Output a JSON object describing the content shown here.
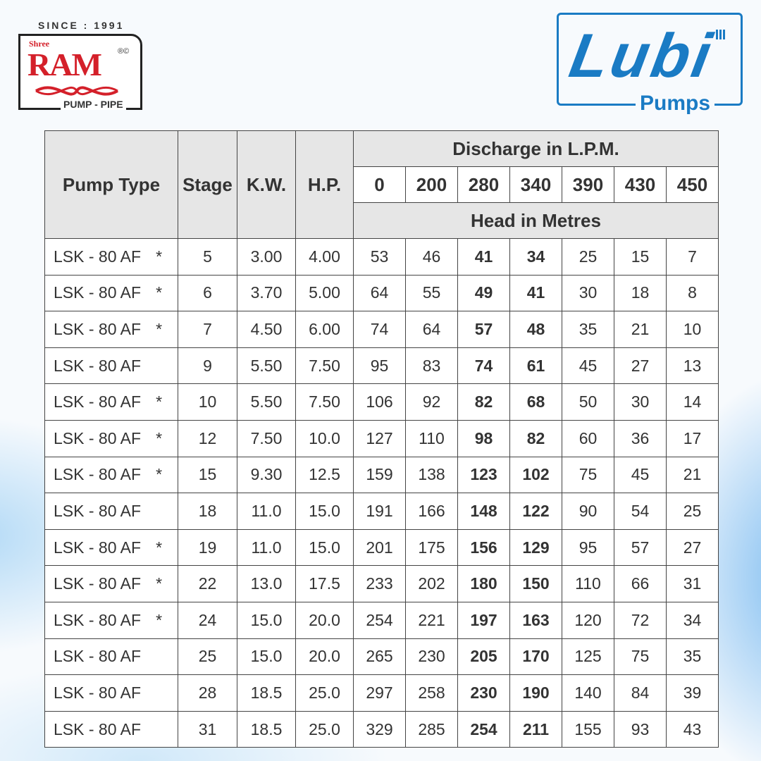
{
  "logos": {
    "ram": {
      "since": "SINCE : 1991",
      "shree": "Shree",
      "name": "RAM",
      "marks": "®©",
      "tagline": "PUMP - PIPE",
      "color": "#d4202a"
    },
    "lubi": {
      "name": "Lubi",
      "tagline": "Pumps",
      "color": "#1a7bc4"
    }
  },
  "table": {
    "headers": {
      "pump_type": "Pump Type",
      "stage": "Stage",
      "kw": "K.W.",
      "hp": "H.P.",
      "discharge": "Discharge in L.P.M.",
      "head": "Head in Metres"
    },
    "discharge_values": [
      "0",
      "200",
      "280",
      "340",
      "390",
      "430",
      "450"
    ],
    "rows": [
      {
        "type": "LSK - 80 AF",
        "mark": "*",
        "stage": "5",
        "kw": "3.00",
        "hp": "4.00",
        "heads": [
          "53",
          "46",
          "41",
          "34",
          "25",
          "15",
          "7"
        ]
      },
      {
        "type": "LSK - 80 AF",
        "mark": "*",
        "stage": "6",
        "kw": "3.70",
        "hp": "5.00",
        "heads": [
          "64",
          "55",
          "49",
          "41",
          "30",
          "18",
          "8"
        ]
      },
      {
        "type": "LSK - 80 AF",
        "mark": "*",
        "stage": "7",
        "kw": "4.50",
        "hp": "6.00",
        "heads": [
          "74",
          "64",
          "57",
          "48",
          "35",
          "21",
          "10"
        ]
      },
      {
        "type": "LSK - 80 AF",
        "mark": "",
        "stage": "9",
        "kw": "5.50",
        "hp": "7.50",
        "heads": [
          "95",
          "83",
          "74",
          "61",
          "45",
          "27",
          "13"
        ]
      },
      {
        "type": "LSK - 80 AF",
        "mark": "*",
        "stage": "10",
        "kw": "5.50",
        "hp": "7.50",
        "heads": [
          "106",
          "92",
          "82",
          "68",
          "50",
          "30",
          "14"
        ]
      },
      {
        "type": "LSK - 80 AF",
        "mark": "*",
        "stage": "12",
        "kw": "7.50",
        "hp": "10.0",
        "heads": [
          "127",
          "110",
          "98",
          "82",
          "60",
          "36",
          "17"
        ]
      },
      {
        "type": "LSK - 80 AF",
        "mark": "*",
        "stage": "15",
        "kw": "9.30",
        "hp": "12.5",
        "heads": [
          "159",
          "138",
          "123",
          "102",
          "75",
          "45",
          "21"
        ]
      },
      {
        "type": "LSK - 80 AF",
        "mark": "",
        "stage": "18",
        "kw": "11.0",
        "hp": "15.0",
        "heads": [
          "191",
          "166",
          "148",
          "122",
          "90",
          "54",
          "25"
        ]
      },
      {
        "type": "LSK - 80 AF",
        "mark": "*",
        "stage": "19",
        "kw": "11.0",
        "hp": "15.0",
        "heads": [
          "201",
          "175",
          "156",
          "129",
          "95",
          "57",
          "27"
        ]
      },
      {
        "type": "LSK - 80 AF",
        "mark": "*",
        "stage": "22",
        "kw": "13.0",
        "hp": "17.5",
        "heads": [
          "233",
          "202",
          "180",
          "150",
          "110",
          "66",
          "31"
        ]
      },
      {
        "type": "LSK - 80 AF",
        "mark": "*",
        "stage": "24",
        "kw": "15.0",
        "hp": "20.0",
        "heads": [
          "254",
          "221",
          "197",
          "163",
          "120",
          "72",
          "34"
        ]
      },
      {
        "type": "LSK - 80 AF",
        "mark": "",
        "stage": "25",
        "kw": "15.0",
        "hp": "20.0",
        "heads": [
          "265",
          "230",
          "205",
          "170",
          "125",
          "75",
          "35"
        ]
      },
      {
        "type": "LSK - 80 AF",
        "mark": "",
        "stage": "28",
        "kw": "18.5",
        "hp": "25.0",
        "heads": [
          "297",
          "258",
          "230",
          "190",
          "140",
          "84",
          "39"
        ]
      },
      {
        "type": "LSK - 80 AF",
        "mark": "",
        "stage": "31",
        "kw": "18.5",
        "hp": "25.0",
        "heads": [
          "329",
          "285",
          "254",
          "211",
          "155",
          "93",
          "43"
        ]
      }
    ]
  }
}
